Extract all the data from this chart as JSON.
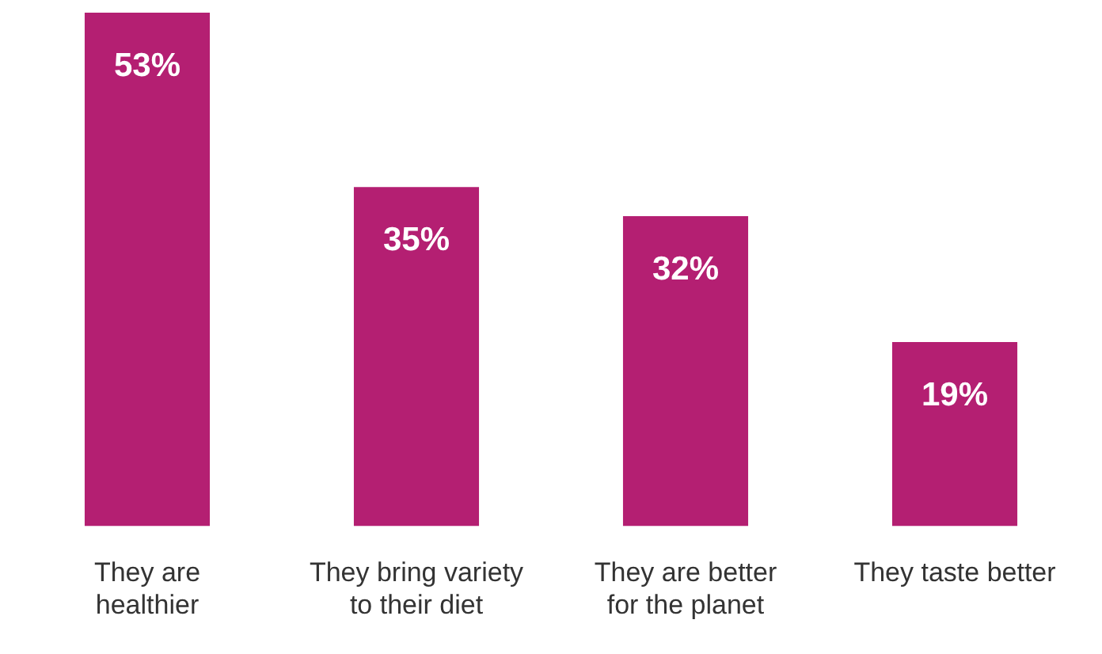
{
  "chart_data": {
    "type": "bar",
    "categories": [
      "They are healthier",
      "They bring variety to their diet",
      "They are better for the planet",
      "They taste better"
    ],
    "values": [
      53,
      35,
      32,
      19
    ],
    "color": "#b41f72",
    "data_labels": true,
    "value_labels": [
      "53%",
      "35%",
      "32%",
      "19%"
    ]
  }
}
